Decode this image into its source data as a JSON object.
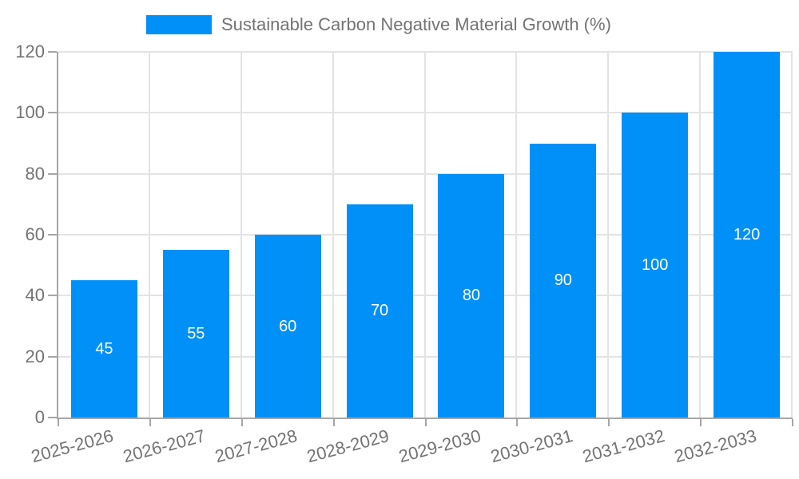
{
  "chart_data": {
    "type": "bar",
    "title": "Sustainable Carbon Negative Material Growth (%)",
    "categories": [
      "2025-2026",
      "2026-2027",
      "2027-2028",
      "2028-2029",
      "2029-2030",
      "2030-2031",
      "2031-2032",
      "2032-2033"
    ],
    "values": [
      45,
      55,
      60,
      70,
      80,
      90,
      100,
      120
    ],
    "series_name": "Sustainable Carbon Negative Material Growth (%)",
    "xlabel": "",
    "ylabel": "",
    "ylim": [
      0,
      120
    ],
    "ytick_step": 20,
    "yticks": [
      0,
      20,
      40,
      60,
      80,
      100,
      120
    ],
    "grid": true,
    "legend_position": "top",
    "colors": {
      "bar": "#0090f8",
      "bar_value_label": "#ffffff",
      "axis_text": "#737373",
      "grid_line": "#e3e3e3",
      "axis_line": "#a6a6a6",
      "tick_mark": "#a6a6a6"
    }
  }
}
